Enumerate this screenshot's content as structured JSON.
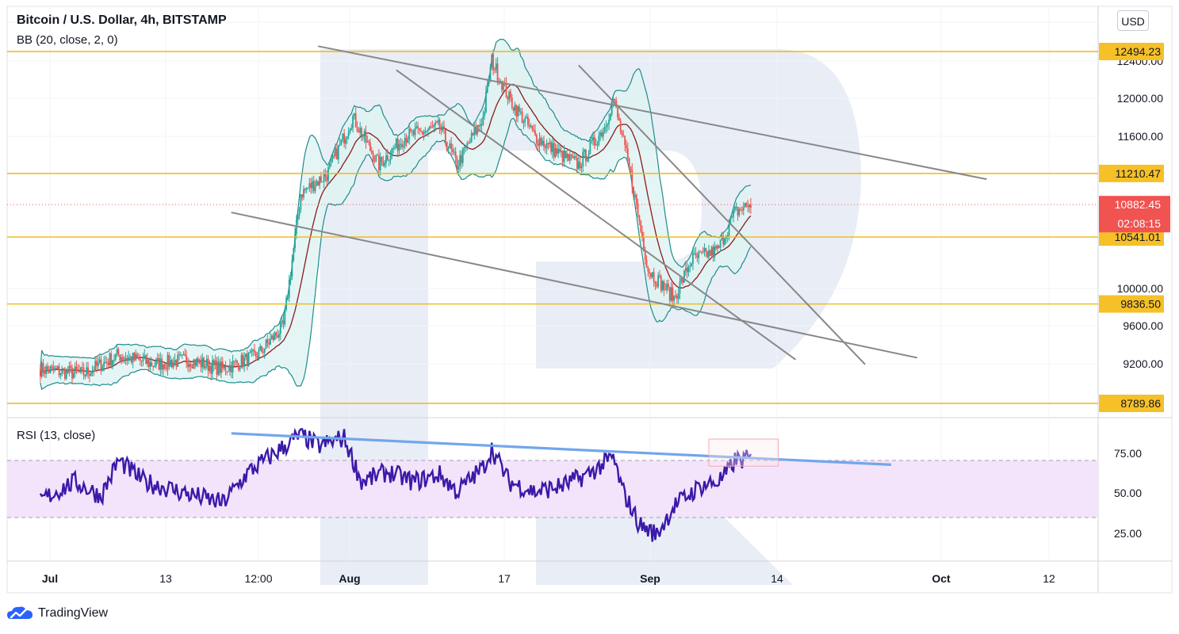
{
  "header": {
    "title": "Bitcoin / U.S. Dollar, 4h, BITSTAMP",
    "bb_label": "BB (20, close, 2, 0)",
    "rsi_label": "RSI (13, close)",
    "currency_button": "USD"
  },
  "footer": {
    "brand": "TradingView"
  },
  "colors": {
    "level_line": "#f0b90b",
    "level_badge": "#f5c028",
    "price_badge": "#f05350",
    "trend_line": "#888888",
    "bb_band": "#1e8c8c",
    "bb_fill": "#dff2f2",
    "bb_basis": "#8b1a1a",
    "candle_up": "#26a69a",
    "candle_down": "#ef5350",
    "rsi_line": "#3a1aa8",
    "rsi_band": "#f3e4fb",
    "rsi_trend": "#72a6ec",
    "watermark": "#e3e8f4"
  },
  "chart_data": [
    {
      "type": "candlestick",
      "title": "Bitcoin / U.S. Dollar, 4h, BITSTAMP",
      "indicator": "BB (20, close, 2, 0)",
      "price_scale_labels": [
        "12400.00",
        "12000.00",
        "11600.00",
        "10000.00",
        "9600.00",
        "9200.00"
      ],
      "time_labels": [
        "Jul",
        "13",
        "12:00",
        "Aug",
        "17",
        "Sep",
        "14",
        "Oct",
        "12"
      ],
      "ylim": [
        8700,
        12800
      ],
      "price_path": [
        {
          "date": "2020-06-27",
          "price": 9150
        },
        {
          "date": "2020-07-02",
          "price": 9100
        },
        {
          "date": "2020-07-06",
          "price": 9300
        },
        {
          "date": "2020-07-10",
          "price": 9200
        },
        {
          "date": "2020-07-14",
          "price": 9250
        },
        {
          "date": "2020-07-18",
          "price": 9150
        },
        {
          "date": "2020-07-22",
          "price": 9300
        },
        {
          "date": "2020-07-25",
          "price": 9600
        },
        {
          "date": "2020-07-27",
          "price": 11000
        },
        {
          "date": "2020-07-30",
          "price": 11200
        },
        {
          "date": "2020-08-02",
          "price": 11800
        },
        {
          "date": "2020-08-05",
          "price": 11300
        },
        {
          "date": "2020-08-08",
          "price": 11600
        },
        {
          "date": "2020-08-12",
          "price": 11700
        },
        {
          "date": "2020-08-14",
          "price": 11300
        },
        {
          "date": "2020-08-17",
          "price": 11800
        },
        {
          "date": "2020-08-18",
          "price": 12400
        },
        {
          "date": "2020-08-20",
          "price": 12000
        },
        {
          "date": "2020-08-23",
          "price": 11600
        },
        {
          "date": "2020-08-26",
          "price": 11400
        },
        {
          "date": "2020-08-28",
          "price": 11300
        },
        {
          "date": "2020-08-31",
          "price": 11700
        },
        {
          "date": "2020-09-01",
          "price": 12000
        },
        {
          "date": "2020-09-03",
          "price": 11200
        },
        {
          "date": "2020-09-05",
          "price": 10200
        },
        {
          "date": "2020-09-08",
          "price": 9900
        },
        {
          "date": "2020-09-10",
          "price": 10300
        },
        {
          "date": "2020-09-13",
          "price": 10400
        },
        {
          "date": "2020-09-15",
          "price": 10800
        },
        {
          "date": "2020-09-17",
          "price": 10900
        }
      ],
      "levels": [
        {
          "label": "12494.23",
          "value": 12494.23
        },
        {
          "label": "11210.47",
          "value": 11210.47
        },
        {
          "label": "10541.01",
          "value": 10541.01
        },
        {
          "label": "9836.50",
          "value": 9836.5
        },
        {
          "label": "8789.86",
          "value": 8789.86
        }
      ],
      "last_price": {
        "label": "10882.45",
        "value": 10882.45
      },
      "countdown": "02:08:15",
      "trendlines": [
        {
          "from": {
            "date": "2020-07-29",
            "price": 12550
          },
          "to": {
            "date": "2020-10-14",
            "price": 11150
          }
        },
        {
          "from": {
            "date": "2020-07-19",
            "price": 10800
          },
          "to": {
            "date": "2020-10-06",
            "price": 9270
          }
        },
        {
          "from": {
            "date": "2020-08-07",
            "price": 12300
          },
          "to": {
            "date": "2020-09-22",
            "price": 9250
          }
        },
        {
          "from": {
            "date": "2020-08-28",
            "price": 12350
          },
          "to": {
            "date": "2020-09-30",
            "price": 9200
          }
        }
      ]
    },
    {
      "type": "line",
      "title": "RSI (13, close)",
      "ytick_labels": [
        "75.00",
        "50.00",
        "25.00"
      ],
      "ylim": [
        0,
        100
      ],
      "band": [
        30,
        70
      ],
      "series": [
        {
          "points": [
            {
              "date": "2020-06-27",
              "rsi": 42
            },
            {
              "date": "2020-07-01",
              "rsi": 55
            },
            {
              "date": "2020-07-04",
              "rsi": 45
            },
            {
              "date": "2020-07-06",
              "rsi": 70
            },
            {
              "date": "2020-07-09",
              "rsi": 55
            },
            {
              "date": "2020-07-12",
              "rsi": 50
            },
            {
              "date": "2020-07-15",
              "rsi": 45
            },
            {
              "date": "2020-07-18",
              "rsi": 40
            },
            {
              "date": "2020-07-21",
              "rsi": 62
            },
            {
              "date": "2020-07-24",
              "rsi": 75
            },
            {
              "date": "2020-07-27",
              "rsi": 88
            },
            {
              "date": "2020-07-29",
              "rsi": 80
            },
            {
              "date": "2020-08-01",
              "rsi": 86
            },
            {
              "date": "2020-08-03",
              "rsi": 55
            },
            {
              "date": "2020-08-06",
              "rsi": 62
            },
            {
              "date": "2020-08-09",
              "rsi": 55
            },
            {
              "date": "2020-08-12",
              "rsi": 60
            },
            {
              "date": "2020-08-14",
              "rsi": 48
            },
            {
              "date": "2020-08-17",
              "rsi": 65
            },
            {
              "date": "2020-08-18",
              "rsi": 78
            },
            {
              "date": "2020-08-20",
              "rsi": 55
            },
            {
              "date": "2020-08-23",
              "rsi": 48
            },
            {
              "date": "2020-08-26",
              "rsi": 52
            },
            {
              "date": "2020-08-29",
              "rsi": 60
            },
            {
              "date": "2020-09-01",
              "rsi": 72
            },
            {
              "date": "2020-09-02",
              "rsi": 50
            },
            {
              "date": "2020-09-04",
              "rsi": 25
            },
            {
              "date": "2020-09-06",
              "rsi": 18
            },
            {
              "date": "2020-09-08",
              "rsi": 38
            },
            {
              "date": "2020-09-11",
              "rsi": 52
            },
            {
              "date": "2020-09-13",
              "rsi": 55
            },
            {
              "date": "2020-09-14",
              "rsi": 60
            },
            {
              "date": "2020-09-15",
              "rsi": 70
            },
            {
              "date": "2020-09-17",
              "rsi": 71
            }
          ]
        }
      ],
      "trendline": {
        "from": {
          "date": "2020-07-19",
          "rsi": 89
        },
        "to": {
          "date": "2020-10-03",
          "rsi": 67
        }
      },
      "highlight_box": {
        "from": {
          "date": "2020-09-12",
          "rsi": 66
        },
        "to": {
          "date": "2020-09-20",
          "rsi": 85
        }
      }
    }
  ]
}
